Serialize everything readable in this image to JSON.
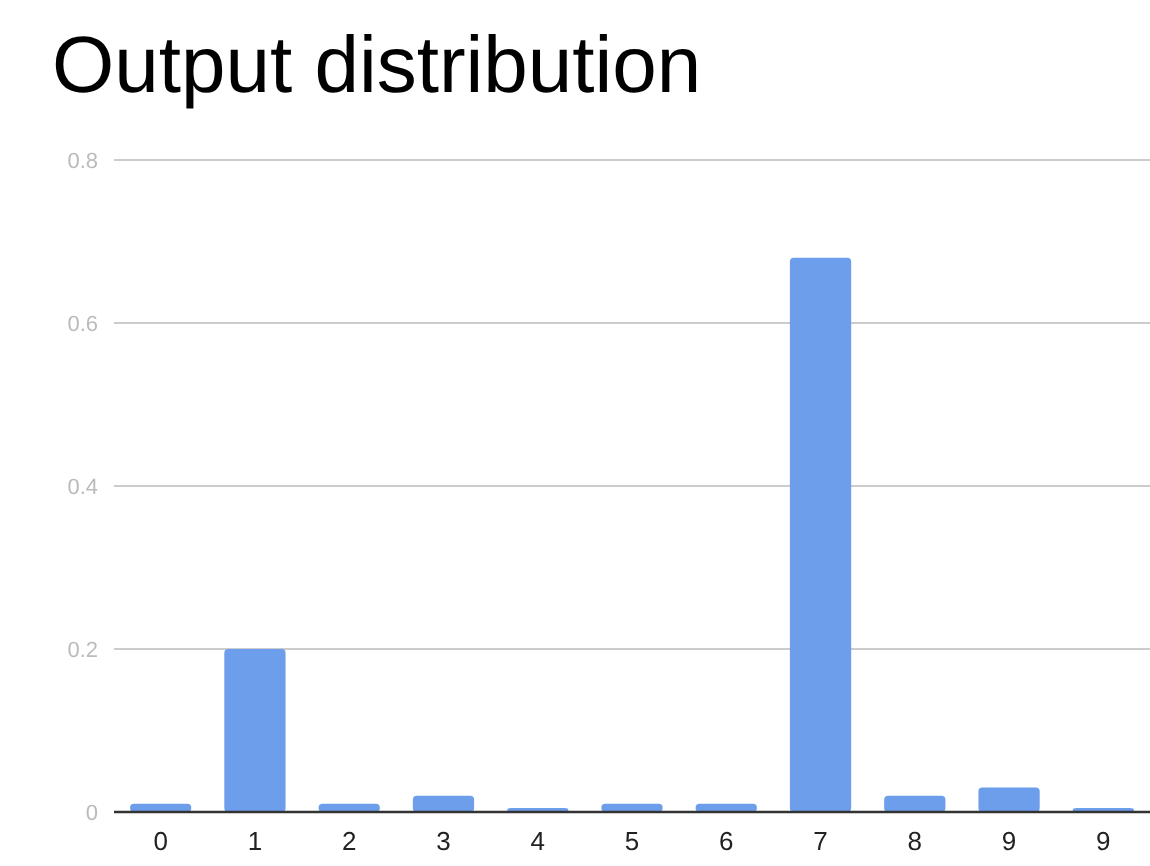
{
  "chart_data": {
    "type": "bar",
    "title": "Output distribution",
    "categories": [
      "0",
      "1",
      "2",
      "3",
      "4",
      "5",
      "6",
      "7",
      "8",
      "9",
      "9"
    ],
    "values": [
      0.01,
      0.2,
      0.01,
      0.02,
      0.005,
      0.01,
      0.01,
      0.68,
      0.02,
      0.03,
      0.005
    ],
    "color": "#6d9eeb",
    "ylim": [
      0,
      0.8
    ],
    "yticks": [
      0,
      0.2,
      0.4,
      0.6,
      0.8
    ],
    "grid": "y"
  }
}
